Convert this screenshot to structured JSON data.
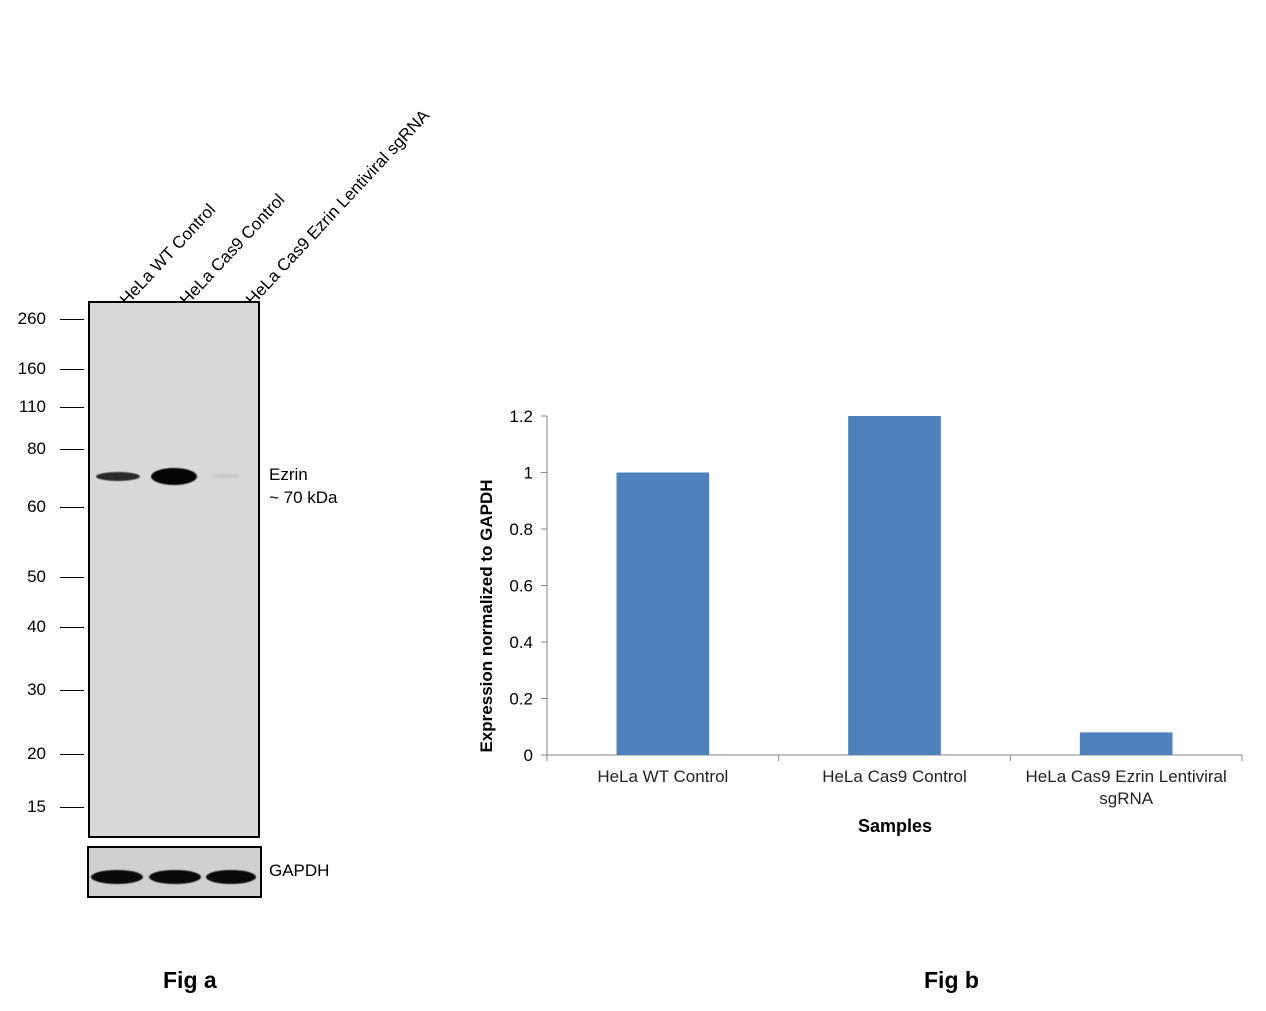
{
  "fig_a": {
    "label": "Fig a",
    "lanes": [
      "HeLa WT Control",
      "HeLa Cas9 Control",
      "HeLa Cas9 Ezrin Lentiviral sgRNA"
    ],
    "markers": [
      "260",
      "160",
      "110",
      "80",
      "60",
      "50",
      "40",
      "30",
      "20",
      "15"
    ],
    "band_label_line1": "Ezrin",
    "band_label_line2": "~ 70 kDa",
    "loading_control": "GAPDH"
  },
  "fig_b": {
    "label": "Fig b"
  },
  "chart_data": {
    "type": "bar",
    "categories": [
      "HeLa WT Control",
      "HeLa Cas9 Control",
      "HeLa Cas9 Ezrin Lentiviral sgRNA"
    ],
    "category_lines": [
      [
        "HeLa WT Control"
      ],
      [
        "HeLa Cas9 Control"
      ],
      [
        "HeLa Cas9 Ezrin Lentiviral",
        "sgRNA"
      ]
    ],
    "values": [
      1.0,
      1.2,
      0.08
    ],
    "xlabel": "Samples",
    "ylabel": "Expression  normalized to GAPDH",
    "ylim": [
      0,
      1.2
    ],
    "yticks": [
      "0",
      "0.2",
      "0.4",
      "0.6",
      "0.8",
      "1",
      "1.2"
    ],
    "bar_color": "#4f81bd",
    "grid": false,
    "legend": "none"
  }
}
